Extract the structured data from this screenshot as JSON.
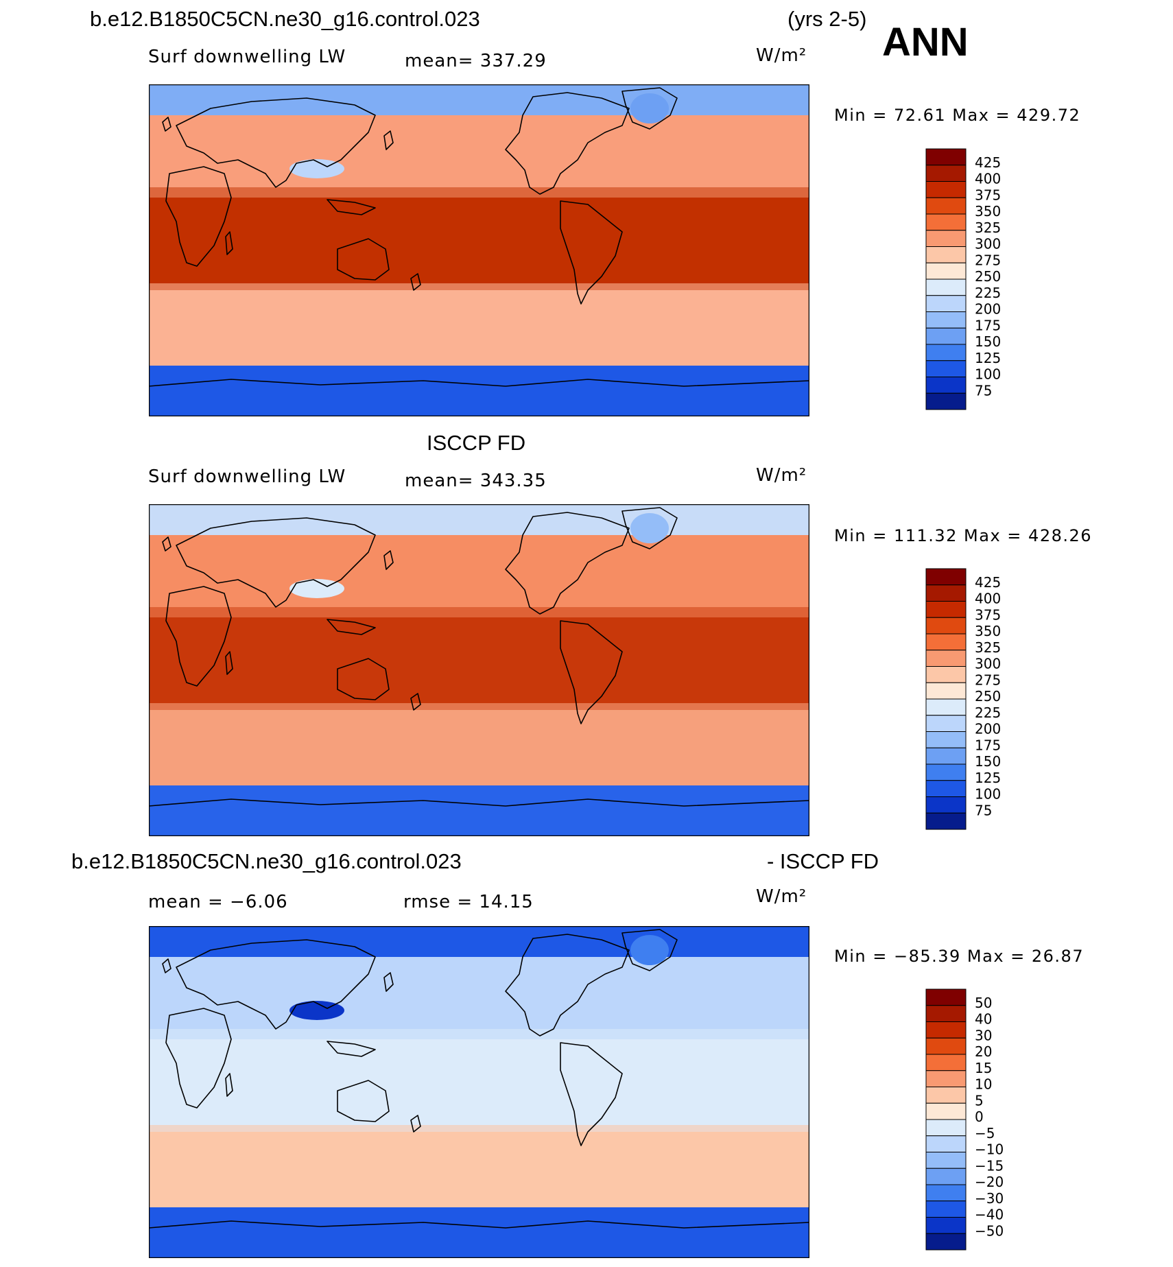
{
  "season": "ANN",
  "panels": [
    {
      "header_left": "b.e12.B1850C5CN.ne30_g16.control.023",
      "header_right": "(yrs 2-5)",
      "label_left": "Surf downwelling LW",
      "label_center": "mean=  337.29",
      "units": "W/m²",
      "minmax": "Min =   72.61  Max =  429.72",
      "colorbar": {
        "labels": [
          "425",
          "400",
          "375",
          "350",
          "325",
          "300",
          "275",
          "250",
          "225",
          "200",
          "175",
          "150",
          "125",
          "100",
          "75"
        ],
        "colors": [
          "#7f0000",
          "#a51900",
          "#c62a00",
          "#e04a10",
          "#f46f38",
          "#f89a72",
          "#fcc7a8",
          "#fde8d6",
          "#dcebfa",
          "#bcd6fb",
          "#94bdf8",
          "#6da0f3",
          "#3f7ff0",
          "#1e58e6",
          "#0b35c8",
          "#061c8c"
        ]
      },
      "regions": {
        "arctic": "#7fadf5",
        "north_mid": "#f99e7b",
        "tropics": "#c23000",
        "south_mid": "#fbb293",
        "antarctic": "#1e58e6",
        "himalaya": "#bcd6fb",
        "greenland": "#6da0f3"
      }
    },
    {
      "header_center": "ISCCP FD",
      "label_left": "Surf downwelling LW",
      "label_center": "mean=  343.35",
      "units": "W/m²",
      "minmax": "Min =  111.32  Max =  428.26",
      "colorbar": {
        "labels": [
          "425",
          "400",
          "375",
          "350",
          "325",
          "300",
          "275",
          "250",
          "225",
          "200",
          "175",
          "150",
          "125",
          "100",
          "75"
        ],
        "colors": [
          "#7f0000",
          "#a51900",
          "#c62a00",
          "#e04a10",
          "#f46f38",
          "#f89a72",
          "#fcc7a8",
          "#fde8d6",
          "#dcebfa",
          "#bcd6fb",
          "#94bdf8",
          "#6da0f3",
          "#3f7ff0",
          "#1e58e6",
          "#0b35c8",
          "#061c8c"
        ]
      },
      "regions": {
        "arctic": "#c8dcf8",
        "north_mid": "#f68d63",
        "tropics": "#c8380a",
        "south_mid": "#f6a07c",
        "antarctic": "#2863ea",
        "himalaya": "#dcebfa",
        "greenland": "#94bdf8"
      }
    },
    {
      "header_left": "b.e12.B1850C5CN.ne30_g16.control.023",
      "header_right": "- ISCCP FD",
      "label_left": "mean =   −6.06",
      "label_center": "rmse =   14.15",
      "units": "W/m²",
      "minmax": "Min = −85.39  Max =   26.87",
      "colorbar": {
        "labels": [
          "50",
          "40",
          "30",
          "20",
          "15",
          "10",
          "5",
          "0",
          "−5",
          "−10",
          "−15",
          "−20",
          "−30",
          "−40",
          "−50"
        ],
        "colors": [
          "#7f0000",
          "#a51900",
          "#c62a00",
          "#e04a10",
          "#f46f38",
          "#f89a72",
          "#fcc7a8",
          "#fde8d6",
          "#dcebfa",
          "#bcd6fb",
          "#94bdf8",
          "#6da0f3",
          "#3f7ff0",
          "#1e58e6",
          "#0b35c8",
          "#061c8c"
        ]
      },
      "regions": {
        "arctic": "#1e58e6",
        "north_mid": "#bcd6fb",
        "tropics": "#dcebfa",
        "south_mid": "#fcc7a8",
        "antarctic": "#1e58e6",
        "himalaya": "#0b35c8",
        "greenland": "#3f7ff0"
      }
    }
  ]
}
